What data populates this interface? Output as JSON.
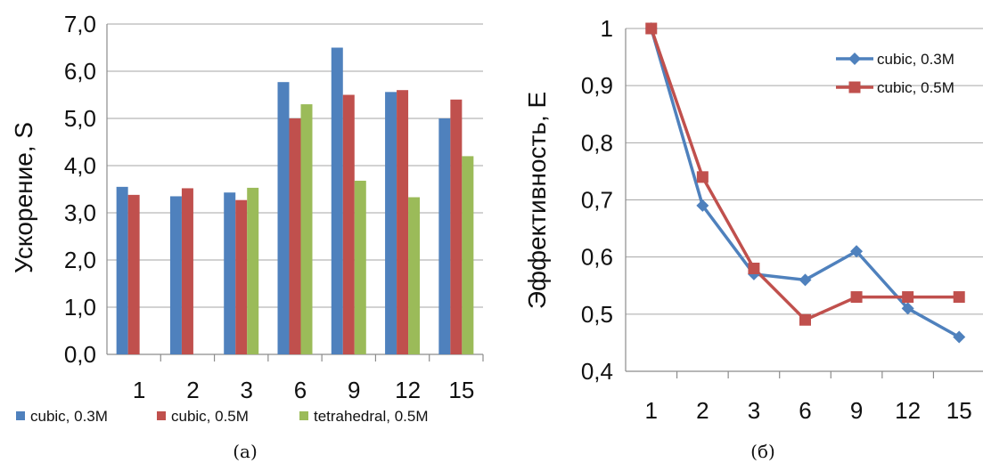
{
  "chart_data": [
    {
      "type": "bar",
      "caption": "(a)",
      "ylabel": "Ускорение, S",
      "xlabel": "",
      "categories": [
        "1",
        "2",
        "3",
        "6",
        "9",
        "12",
        "15"
      ],
      "yticks": [
        "0,0",
        "1,0",
        "2,0",
        "3,0",
        "4,0",
        "5,0",
        "6,0",
        "7,0"
      ],
      "ylim": [
        0,
        7
      ],
      "grid": true,
      "legend_position": "bottom",
      "series": [
        {
          "name": "cubic, 0.3M",
          "color": "#4f81bd",
          "values": [
            3.55,
            3.35,
            3.43,
            5.77,
            6.5,
            5.56,
            5.0
          ]
        },
        {
          "name": "cubic, 0.5M",
          "color": "#c0504d",
          "values": [
            3.38,
            3.52,
            3.27,
            5.0,
            5.5,
            5.6,
            5.4
          ]
        },
        {
          "name": "tetrahedral, 0.5M",
          "color": "#9bbb59",
          "values": [
            null,
            null,
            3.53,
            5.3,
            3.68,
            3.33,
            4.2
          ]
        }
      ]
    },
    {
      "type": "line",
      "caption": "(б)",
      "ylabel": "Эффективность, E",
      "xlabel": "",
      "categories": [
        "1",
        "2",
        "3",
        "6",
        "9",
        "12",
        "15"
      ],
      "yticks": [
        "0,4",
        "0,5",
        "0,6",
        "0,7",
        "0,8",
        "0,9",
        "1"
      ],
      "ylim": [
        0.4,
        1.0
      ],
      "grid": true,
      "legend_position": "top-right",
      "series": [
        {
          "name": "cubic, 0.3M",
          "color": "#4f81bd",
          "marker": "diamond",
          "values": [
            1.0,
            0.69,
            0.57,
            0.56,
            0.61,
            0.51,
            0.46
          ]
        },
        {
          "name": "cubic, 0.5M",
          "color": "#c0504d",
          "marker": "square",
          "values": [
            1.0,
            0.74,
            0.58,
            0.49,
            0.53,
            0.53,
            0.53
          ]
        }
      ]
    }
  ]
}
